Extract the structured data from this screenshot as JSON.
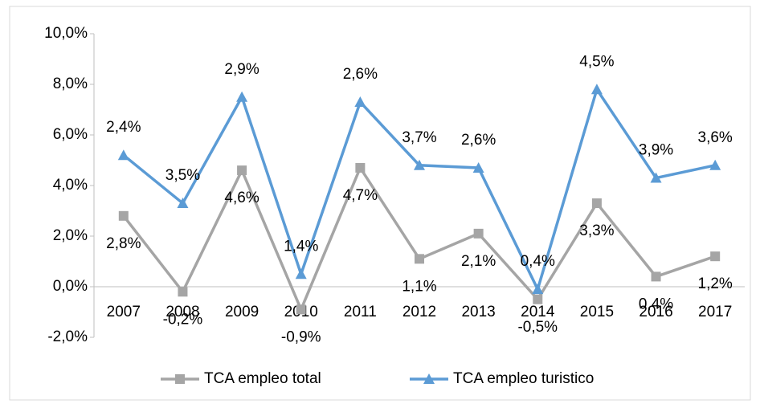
{
  "chart_data": {
    "type": "line",
    "stacked": true,
    "categories": [
      "2007",
      "2008",
      "2009",
      "2010",
      "2011",
      "2012",
      "2013",
      "2014",
      "2015",
      "2016",
      "2017"
    ],
    "series": [
      {
        "name": "TCA empleo total",
        "color": "#a5a5a5",
        "marker": "square",
        "values": [
          2.8,
          -0.2,
          4.6,
          -0.9,
          4.7,
          1.1,
          2.1,
          -0.5,
          3.3,
          0.4,
          1.2
        ],
        "value_labels": [
          "2,8%",
          "-0,2%",
          "4,6%",
          "-0,9%",
          "4,7%",
          "1,1%",
          "2,1%",
          "-0,5%",
          "3,3%",
          "0,4%",
          "1,2%"
        ]
      },
      {
        "name": "TCA empleo turistico",
        "color": "#5b9bd5",
        "marker": "triangle",
        "values": [
          2.4,
          3.5,
          2.9,
          1.4,
          2.6,
          3.7,
          2.6,
          0.4,
          4.5,
          3.9,
          3.6
        ],
        "value_labels": [
          "2,4%",
          "3,5%",
          "2,9%",
          "1,4%",
          "2,6%",
          "3,7%",
          "2,6%",
          "0,4%",
          "4,5%",
          "3,9%",
          "3,6%"
        ]
      }
    ],
    "ylim": [
      -2,
      10
    ],
    "yticks": [
      {
        "value": -2,
        "label": "-2,0%"
      },
      {
        "value": 0,
        "label": "0,0%"
      },
      {
        "value": 2,
        "label": "2,0%"
      },
      {
        "value": 4,
        "label": "4,0%"
      },
      {
        "value": 6,
        "label": "6,0%"
      },
      {
        "value": 8,
        "label": "8,0%"
      },
      {
        "value": 10,
        "label": "10,0%"
      }
    ],
    "grid": false,
    "legend": "bottom"
  }
}
